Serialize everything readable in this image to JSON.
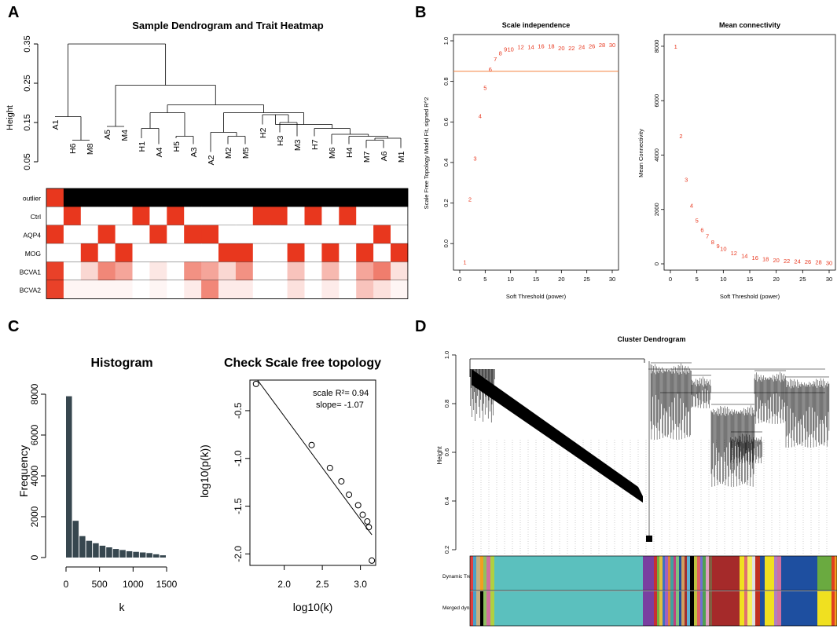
{
  "panels": {
    "a": "A",
    "b": "B",
    "c": "C",
    "d": "D"
  },
  "colors": {
    "red": "#e8371e",
    "black": "#000000",
    "orange_line": "#f5813e",
    "hist": "#37474f",
    "turquoise": "#5bc0be"
  },
  "chart_data": [
    {
      "id": "A_dendrogram",
      "type": "dendrogram",
      "title": "Sample Dendrogram and Trait Heatmap",
      "ylabel": "Height",
      "yticks": [
        "0.05",
        "0.15",
        "0.25",
        "0.35"
      ],
      "ylim": [
        0.05,
        0.35
      ],
      "samples": [
        "A1",
        "H6",
        "M8",
        "A5",
        "M4",
        "H1",
        "A4",
        "H5",
        "A3",
        "A2",
        "M2",
        "M5",
        "H2",
        "H3",
        "M3",
        "H7",
        "M6",
        "H4",
        "M7",
        "A6",
        "M1"
      ],
      "leaf_heights": [
        0.165,
        0.105,
        0.105,
        0.14,
        0.14,
        0.11,
        0.095,
        0.11,
        0.095,
        0.075,
        0.095,
        0.095,
        0.145,
        0.125,
        0.115,
        0.115,
        0.095,
        0.095,
        0.085,
        0.085,
        0.085
      ],
      "merges": [
        {
          "h": 0.165,
          "left": "A1",
          "right": "H6-M8"
        },
        {
          "h": 0.105,
          "left": "H6",
          "right": "M8"
        },
        {
          "h": 0.35,
          "left": "A1-H6-M8",
          "right": "rest"
        },
        {
          "h": 0.245,
          "left": "A5-M4",
          "right": "cluster2"
        },
        {
          "h": 0.14,
          "left": "A5",
          "right": "M4"
        },
        {
          "h": 0.205,
          "left": "H1-A4-H5-A3",
          "right": "A2..M1"
        }
      ]
    },
    {
      "id": "A_heatmap",
      "type": "heatmap",
      "rows": [
        "outlier",
        "Ctrl",
        "AQP4",
        "MOG",
        "BCVA1",
        "BCVA2"
      ],
      "columns": [
        "A1",
        "H6",
        "M8",
        "A5",
        "M4",
        "H1",
        "A4",
        "H5",
        "A3",
        "A2",
        "M2",
        "M5",
        "H2",
        "H3",
        "M3",
        "H7",
        "M6",
        "H4",
        "M7",
        "A6",
        "M1"
      ],
      "values": [
        [
          2,
          0,
          0,
          0,
          0,
          0,
          0,
          0,
          0,
          0,
          0,
          0,
          0,
          0,
          0,
          0,
          0,
          0,
          0,
          0,
          0
        ],
        [
          0,
          1,
          0,
          0,
          0,
          1,
          0,
          1,
          0,
          0,
          0,
          0,
          1,
          1,
          0,
          1,
          0,
          1,
          0,
          0,
          0
        ],
        [
          1,
          0,
          0,
          1,
          0,
          0,
          1,
          0,
          1,
          1,
          0,
          0,
          0,
          0,
          0,
          0,
          0,
          0,
          0,
          1,
          0
        ],
        [
          0,
          0,
          1,
          0,
          1,
          0,
          0,
          0,
          0,
          0,
          1,
          1,
          0,
          0,
          1,
          0,
          1,
          0,
          1,
          0,
          1
        ],
        [
          0.95,
          0,
          0.2,
          0.6,
          0.45,
          0,
          0.12,
          0,
          0.55,
          0.45,
          0.2,
          0.55,
          0,
          0,
          0.3,
          0,
          0.35,
          0,
          0.45,
          0.65,
          0.15
        ],
        [
          0.95,
          0.05,
          0.05,
          0.05,
          0.05,
          0,
          0.05,
          0,
          0.1,
          0.6,
          0.1,
          0.1,
          0,
          0,
          0.15,
          0,
          0.1,
          0,
          0.3,
          0.15,
          0.05
        ]
      ]
    },
    {
      "id": "B_scale_independence",
      "type": "scatter-text",
      "title": "Scale independence",
      "xlabel": "Soft Threshold (power)",
      "ylabel": "Scale Free Topology Model Fit, signed R^2",
      "xlim": [
        0,
        30
      ],
      "ylim": [
        -0.1,
        1.0
      ],
      "xticks": [
        "0",
        "5",
        "10",
        "15",
        "20",
        "25",
        "30"
      ],
      "yticks": [
        "0.0",
        "0.2",
        "0.4",
        "0.6",
        "0.8",
        "1.0"
      ],
      "cutoff": 0.85,
      "x": [
        1,
        2,
        3,
        4,
        5,
        6,
        7,
        8,
        9,
        10,
        12,
        14,
        16,
        18,
        20,
        22,
        24,
        26,
        28,
        30
      ],
      "y": [
        -0.09,
        0.22,
        0.42,
        0.63,
        0.77,
        0.86,
        0.91,
        0.94,
        0.96,
        0.96,
        0.97,
        0.97,
        0.975,
        0.975,
        0.965,
        0.965,
        0.97,
        0.975,
        0.98,
        0.98
      ],
      "labels": [
        "1",
        "2",
        "3",
        "4",
        "5",
        "6",
        "7",
        "8",
        "9",
        "10",
        "12",
        "14",
        "16",
        "18",
        "20",
        "22",
        "24",
        "26",
        "28",
        "30"
      ]
    },
    {
      "id": "B_mean_connectivity",
      "type": "scatter-text",
      "title": "Mean connectivity",
      "xlabel": "Soft Threshold (power)",
      "ylabel": "Mean Connectivity",
      "xlim": [
        0,
        30
      ],
      "ylim": [
        0,
        8200
      ],
      "xticks": [
        "0",
        "5",
        "10",
        "15",
        "20",
        "25",
        "30"
      ],
      "yticks": [
        "0",
        "2000",
        "4000",
        "6000",
        "8000"
      ],
      "x": [
        1,
        2,
        3,
        4,
        5,
        6,
        7,
        8,
        9,
        10,
        12,
        14,
        16,
        18,
        20,
        22,
        24,
        26,
        28,
        30
      ],
      "y": [
        8000,
        4700,
        3100,
        2150,
        1600,
        1250,
        1020,
        810,
        660,
        560,
        400,
        300,
        230,
        190,
        150,
        120,
        100,
        80,
        65,
        50
      ],
      "labels": [
        "1",
        "2",
        "3",
        "4",
        "5",
        "6",
        "7",
        "8",
        "9",
        "10",
        "12",
        "14",
        "16",
        "18",
        "20",
        "22",
        "24",
        "26",
        "28",
        "30"
      ]
    },
    {
      "id": "C_histogram",
      "type": "bar",
      "title": "Histogram",
      "xlabel": "k",
      "ylabel": "Frequency",
      "xlim": [
        -100,
        1550
      ],
      "ylim": [
        0,
        8400
      ],
      "xticks": [
        "0",
        "500",
        "1000",
        "1500"
      ],
      "yticks": [
        "0",
        "2000",
        "4000",
        "6000",
        "8000"
      ],
      "bin_width": 100,
      "bin_starts": [
        0,
        100,
        200,
        300,
        400,
        500,
        600,
        700,
        800,
        900,
        1000,
        1100,
        1200,
        1300,
        1400
      ],
      "values": [
        7900,
        1800,
        1050,
        820,
        700,
        580,
        500,
        420,
        370,
        310,
        280,
        250,
        220,
        160,
        110
      ]
    },
    {
      "id": "C_scale_free",
      "type": "scatter",
      "title": "Check Scale free topology",
      "xlabel": "log10(k)",
      "ylabel": "log10(p(k))",
      "xlim": [
        1.55,
        3.2
      ],
      "ylim": [
        -2.12,
        -0.18
      ],
      "xticks": [
        "2.0",
        "2.5",
        "3.0"
      ],
      "yticks": [
        "-0.5",
        "-1.0",
        "-1.5",
        "-2.0"
      ],
      "annotation_r2": "scale R²= 0.94",
      "annotation_slope": "slope= -1.07",
      "fit_line": {
        "x0": 1.65,
        "y0": -0.18,
        "x1": 3.15,
        "y1": -1.8
      },
      "x": [
        1.63,
        2.36,
        2.6,
        2.75,
        2.85,
        2.97,
        3.03,
        3.09,
        3.11,
        3.15
      ],
      "y": [
        -0.22,
        -0.86,
        -1.1,
        -1.24,
        -1.38,
        -1.49,
        -1.59,
        -1.66,
        -1.72,
        -2.07
      ]
    },
    {
      "id": "D_cluster_dendrogram",
      "type": "dendrogram",
      "title": "Cluster Dendrogram",
      "ylabel": "Height",
      "yticks": [
        "0.2",
        "0.4",
        "0.6",
        "0.8",
        "1.0"
      ],
      "ylim": [
        0.2,
        1.0
      ],
      "color_rows": [
        "Dynamic Tree Cut",
        "Merged dynamic"
      ]
    }
  ]
}
